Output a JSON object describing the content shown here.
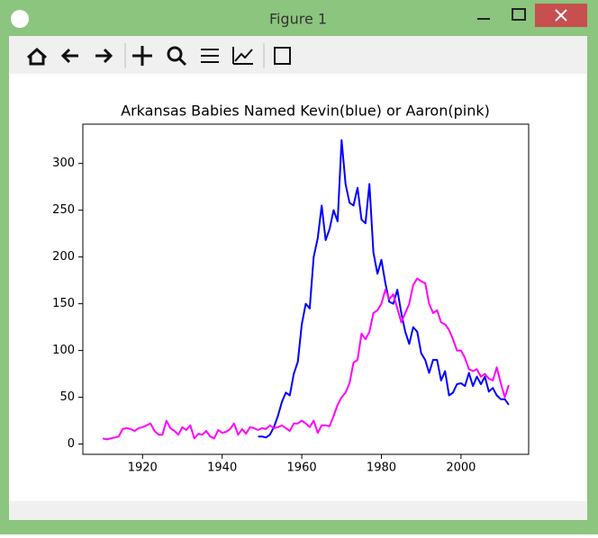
{
  "window": {
    "title": "Figure 1"
  },
  "chart_data": {
    "type": "line",
    "title": "Arkansas Babies Named Kevin(blue) or Aaron(pink)",
    "series": [
      {
        "color": "#0000ff",
        "x": [
          1949,
          1950,
          1951,
          1952,
          1953,
          1954,
          1955,
          1956,
          1957,
          1958,
          1959,
          1960,
          1961,
          1962,
          1963,
          1964,
          1965,
          1966,
          1967,
          1968,
          1969,
          1970,
          1971,
          1972,
          1973,
          1974,
          1975,
          1976,
          1977,
          1978,
          1979,
          1980,
          1981,
          1982,
          1983,
          1984,
          1985,
          1986,
          1987,
          1988,
          1989,
          1990,
          1991,
          1992,
          1993,
          1994,
          1995,
          1996,
          1997,
          1998,
          1999,
          2000,
          2001,
          2002,
          2003,
          2004,
          2005,
          2006,
          2007,
          2008,
          2009,
          2010,
          2011,
          2012
        ],
        "values": [
          8,
          8,
          7,
          10,
          18,
          30,
          45,
          55,
          52,
          75,
          88,
          128,
          150,
          145,
          200,
          220,
          255,
          218,
          230,
          250,
          238,
          325,
          278,
          258,
          255,
          274,
          240,
          236,
          278,
          205,
          182,
          197,
          172,
          152,
          150,
          165,
          140,
          120,
          107,
          125,
          120,
          97,
          90,
          76,
          90,
          90,
          68,
          78,
          52,
          55,
          64,
          65,
          62,
          76,
          62,
          72,
          64,
          72,
          56,
          60,
          52,
          48,
          48,
          42
        ]
      },
      {
        "color": "#ff00ff",
        "x": [
          1910,
          1911,
          1912,
          1913,
          1914,
          1915,
          1916,
          1917,
          1918,
          1919,
          1920,
          1921,
          1922,
          1923,
          1924,
          1925,
          1926,
          1927,
          1928,
          1929,
          1930,
          1931,
          1932,
          1933,
          1934,
          1935,
          1936,
          1937,
          1938,
          1939,
          1940,
          1941,
          1942,
          1943,
          1944,
          1945,
          1946,
          1947,
          1948,
          1949,
          1950,
          1951,
          1952,
          1953,
          1954,
          1955,
          1956,
          1957,
          1958,
          1959,
          1960,
          1961,
          1962,
          1963,
          1964,
          1965,
          1966,
          1967,
          1968,
          1969,
          1970,
          1971,
          1972,
          1973,
          1974,
          1975,
          1976,
          1977,
          1978,
          1979,
          1980,
          1981,
          1982,
          1983,
          1984,
          1985,
          1986,
          1987,
          1988,
          1989,
          1990,
          1991,
          1992,
          1993,
          1994,
          1995,
          1996,
          1997,
          1998,
          1999,
          2000,
          2001,
          2002,
          2003,
          2004,
          2005,
          2006,
          2007,
          2008,
          2009,
          2010,
          2011,
          2012
        ],
        "values": [
          6,
          5,
          6,
          7,
          8,
          16,
          17,
          16,
          14,
          17,
          18,
          20,
          22,
          14,
          10,
          10,
          25,
          17,
          14,
          10,
          18,
          15,
          20,
          6,
          11,
          10,
          14,
          8,
          6,
          15,
          12,
          13,
          16,
          22,
          10,
          16,
          11,
          18,
          17,
          15,
          17,
          16,
          20,
          17,
          18,
          20,
          17,
          14,
          22,
          22,
          25,
          22,
          18,
          25,
          12,
          20,
          20,
          19,
          30,
          42,
          50,
          55,
          65,
          87,
          90,
          118,
          112,
          120,
          140,
          143,
          150,
          165,
          155,
          160,
          145,
          130,
          140,
          150,
          170,
          177,
          174,
          172,
          150,
          140,
          143,
          130,
          128,
          122,
          112,
          100,
          100,
          92,
          80,
          78,
          80,
          72,
          75,
          70,
          68,
          82,
          65,
          50,
          63
        ]
      }
    ],
    "xlim": [
      1905,
      2017
    ],
    "xticks": [
      1920,
      1940,
      1960,
      1980,
      2000
    ],
    "ylim": [
      -11,
      342
    ],
    "yticks": [
      0,
      50,
      100,
      150,
      200,
      250,
      300
    ]
  }
}
